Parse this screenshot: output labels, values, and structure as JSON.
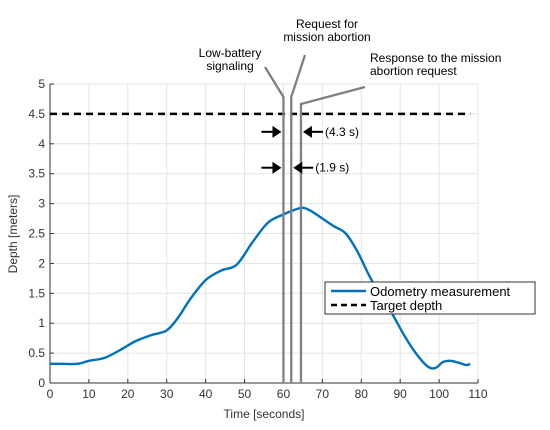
{
  "chart_data": {
    "type": "line",
    "xlabel": "Time [seconds]",
    "ylabel": "Depth [meters]",
    "xlim": [
      0,
      110
    ],
    "ylim": [
      0,
      5
    ],
    "xticks": [
      "0",
      "10",
      "20",
      "30",
      "40",
      "50",
      "60",
      "70",
      "80",
      "90",
      "100",
      "110"
    ],
    "yticks": [
      "0",
      "0.5",
      "1",
      "1.5",
      "2",
      "2.5",
      "3",
      "3.5",
      "4",
      "4.5",
      "5"
    ],
    "grid": true,
    "legend_position": "lower-right",
    "series": [
      {
        "name": "Odometry measurement",
        "style": "solid",
        "color": "#0072bd",
        "x": [
          0,
          3,
          7,
          10,
          14,
          18,
          22,
          26,
          30,
          33,
          36,
          40,
          44,
          48,
          52,
          56,
          60,
          63,
          65,
          67,
          70,
          73,
          76,
          79,
          82,
          85,
          88,
          91,
          94,
          97,
          99,
          101,
          103,
          105,
          107,
          108
        ],
        "y": [
          0.32,
          0.32,
          0.32,
          0.37,
          0.42,
          0.55,
          0.7,
          0.8,
          0.88,
          1.1,
          1.4,
          1.72,
          1.88,
          1.98,
          2.35,
          2.68,
          2.82,
          2.9,
          2.93,
          2.88,
          2.75,
          2.62,
          2.5,
          2.2,
          1.8,
          1.45,
          1.15,
          0.8,
          0.5,
          0.28,
          0.25,
          0.35,
          0.37,
          0.34,
          0.3,
          0.32
        ]
      },
      {
        "name": "Target depth",
        "style": "dashed",
        "color": "#000000",
        "x": [
          0,
          108
        ],
        "y": [
          4.5,
          4.5
        ]
      }
    ],
    "annotations": [
      {
        "id": "low-battery",
        "lines": [
          "Low-battery",
          "signaling"
        ],
        "time": 60
      },
      {
        "id": "abort-request",
        "lines": [
          "Request for",
          "mission abortion"
        ],
        "time": 62
      },
      {
        "id": "abort-response",
        "lines": [
          "Response to the mission",
          "abortion request"
        ],
        "time": 64.5
      }
    ],
    "intervals": [
      {
        "label": "(4.3 s)",
        "depth": 4.2
      },
      {
        "label": "(1.9 s)",
        "depth": 3.6
      }
    ],
    "event_line_color": "#808080"
  }
}
